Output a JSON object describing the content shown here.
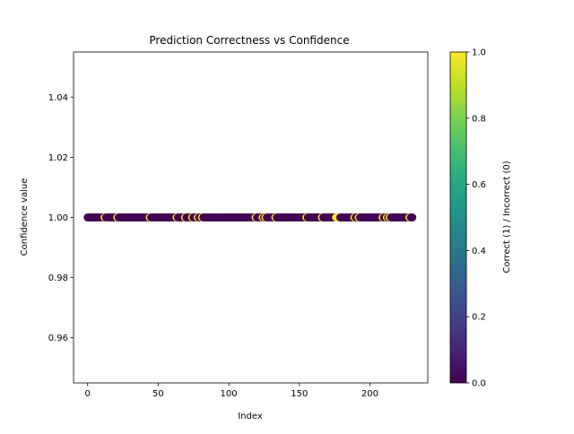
{
  "chart_data": {
    "type": "scatter",
    "title": "Prediction Correctness vs Confidence",
    "xlabel": "Index",
    "ylabel": "Confidence value",
    "xlim": [
      -10,
      241
    ],
    "ylim": [
      0.945,
      1.055
    ],
    "xticks": [
      0,
      50,
      100,
      150,
      200
    ],
    "xtick_labels": [
      "0",
      "50",
      "100",
      "150",
      "200"
    ],
    "yticks": [
      0.96,
      0.98,
      1.0,
      1.02,
      1.04
    ],
    "ytick_labels": [
      "0.96",
      "0.98",
      "1.00",
      "1.02",
      "1.04"
    ],
    "grid": false,
    "legend": "none",
    "x_start": 0,
    "x_end": 230,
    "y_value": 1.0,
    "correct_indices": [
      12,
      21,
      44,
      63,
      69,
      74,
      78,
      81,
      119,
      124,
      126,
      133,
      155,
      166,
      176,
      177,
      178,
      189,
      192,
      209,
      212,
      214,
      228
    ],
    "colorbar": {
      "label": "Correct (1) / Incorrect (0)",
      "min": 0.0,
      "max": 1.0,
      "ticks": [
        0.0,
        0.2,
        0.4,
        0.6,
        0.8,
        1.0
      ],
      "tick_labels": [
        "0.0",
        "0.2",
        "0.4",
        "0.6",
        "0.8",
        "1.0"
      ],
      "colormap": "viridis"
    },
    "colors": {
      "incorrect": "#440154",
      "correct": "#fde725"
    }
  }
}
